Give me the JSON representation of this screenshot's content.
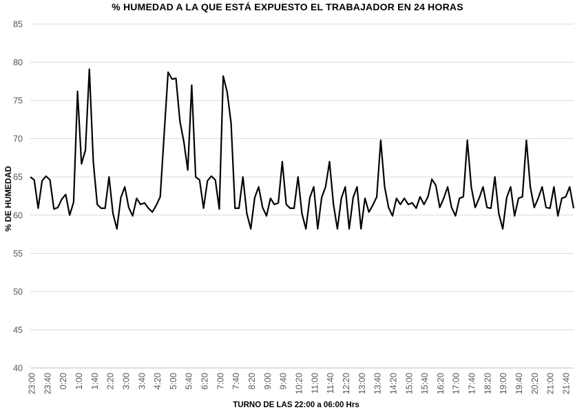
{
  "chart_data": {
    "type": "line",
    "title": "% HUMEDAD A LA QUE ESTÁ EXPUESTO EL TRABAJADOR EN 24 HORAS",
    "xlabel": "TURNO DE LAS 22:00 a  06:00 Hrs",
    "ylabel": "% DE HUMEDAD",
    "ylim": [
      40,
      85
    ],
    "yticks": [
      "40",
      "45",
      "50",
      "55",
      "60",
      "65",
      "70",
      "75",
      "80",
      "85"
    ],
    "grid": true,
    "legend": "none",
    "line_color": "#000000",
    "x_tick_labels": [
      "23:00",
      "23:40",
      "0:20",
      "1:00",
      "1:40",
      "2:20",
      "3:00",
      "3:40",
      "4:20",
      "5:00",
      "5:40",
      "6:20",
      "7:00",
      "7:40",
      "8:20",
      "9:00",
      "9:40",
      "10:20",
      "11:00",
      "11:40",
      "12:20",
      "13:00",
      "13:40",
      "14:20",
      "15:00",
      "15:40",
      "16:20",
      "17:00",
      "17:40",
      "18:20",
      "19:00",
      "19:40",
      "20:20",
      "21:00",
      "21:40"
    ],
    "series": [
      {
        "values": [
          65.0,
          64.6,
          60.9,
          64.5,
          65.1,
          64.6,
          60.8,
          61.0,
          62.1,
          62.7,
          60.0,
          61.7,
          76.2,
          66.7,
          68.5,
          79.1,
          67.0,
          61.4,
          60.9,
          60.9,
          65.0,
          60.2,
          58.2,
          62.3,
          63.7,
          61.0,
          59.9,
          62.2,
          61.4,
          61.6,
          60.9,
          60.4,
          61.3,
          62.4,
          70.6,
          78.7,
          77.8,
          77.9,
          72.3,
          69.6,
          65.9,
          77.0,
          65.0,
          64.6,
          60.9,
          64.5,
          65.1,
          64.6,
          60.8,
          78.2,
          76.1,
          72.0,
          60.9,
          60.9,
          65.0,
          60.2,
          58.2,
          62.3,
          63.7,
          61.0,
          59.9,
          62.2,
          61.4,
          61.6,
          67.0,
          61.4,
          60.9,
          60.9,
          65.0,
          60.2,
          58.2,
          62.3,
          63.7,
          58.2,
          62.3,
          63.7,
          67.0,
          61.4,
          58.2,
          62.2,
          63.7,
          58.2,
          62.3,
          63.7,
          58.2,
          62.2,
          60.4,
          61.3,
          62.4,
          69.8,
          63.7,
          61.0,
          59.9,
          62.2,
          61.4,
          62.2,
          61.4,
          61.6,
          60.9,
          62.4,
          61.4,
          62.4,
          64.7,
          63.9,
          61.0,
          62.2,
          63.7,
          61.0,
          59.9,
          62.2,
          62.4,
          69.8,
          63.7,
          61.0,
          62.2,
          63.7,
          61.0,
          60.9,
          65.0,
          60.2,
          58.2,
          62.3,
          63.7,
          59.9,
          62.2,
          62.4,
          69.8,
          63.7,
          61.0,
          62.2,
          63.7,
          61.0,
          60.9,
          63.7,
          59.9,
          62.2,
          62.4,
          63.7,
          60.9
        ]
      }
    ]
  }
}
